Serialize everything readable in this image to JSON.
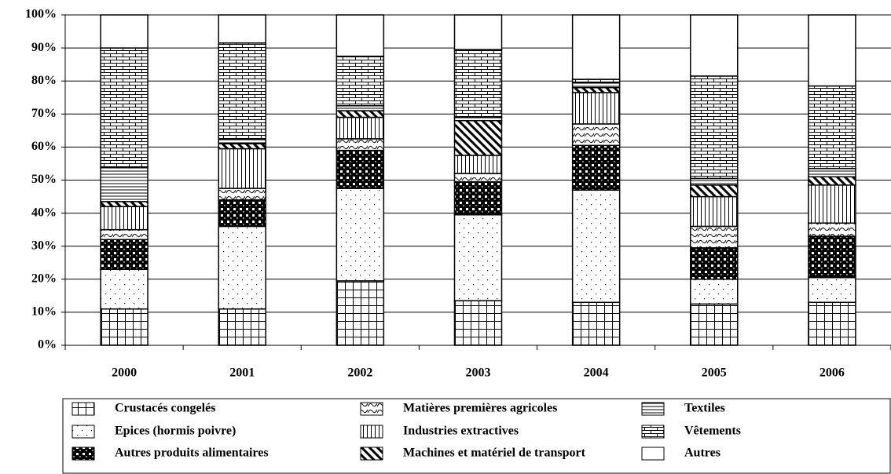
{
  "chart_data": {
    "type": "stacked-bar",
    "categories": [
      "2000",
      "2001",
      "2002",
      "2003",
      "2004",
      "2005",
      "2006"
    ],
    "ylim": [
      0,
      100
    ],
    "yticks": [
      {
        "value": 0,
        "label": "0%"
      },
      {
        "value": 10,
        "label": "10%"
      },
      {
        "value": 20,
        "label": "20%"
      },
      {
        "value": 30,
        "label": "30%"
      },
      {
        "value": 40,
        "label": "40%"
      },
      {
        "value": 50,
        "label": "50%"
      },
      {
        "value": 60,
        "label": "60%"
      },
      {
        "value": 70,
        "label": "70%"
      },
      {
        "value": 80,
        "label": "80%"
      },
      {
        "value": 90,
        "label": "90%"
      },
      {
        "value": 100,
        "label": "100%"
      }
    ],
    "grid": true,
    "legend": "bottom",
    "series": [
      {
        "name": "Crustacés congelés",
        "pattern": "grid",
        "values": [
          11,
          11,
          19.5,
          13.5,
          13,
          12.5,
          13
        ]
      },
      {
        "name": "Epices (hormis poivre)",
        "pattern": "dots",
        "values": [
          12,
          25,
          28,
          26,
          34,
          7.5,
          7.5
        ]
      },
      {
        "name": "Autres produits alimentaires",
        "pattern": "checker",
        "values": [
          9,
          8,
          11.5,
          10,
          13.5,
          9.5,
          12.5
        ]
      },
      {
        "name": "Matières premières agricoles",
        "pattern": "waves",
        "values": [
          3,
          3.5,
          3.5,
          2.5,
          6.5,
          6.5,
          4
        ]
      },
      {
        "name": "Industries extractives",
        "pattern": "vertical",
        "values": [
          7,
          12,
          6.5,
          5.5,
          9.5,
          9,
          11.5
        ]
      },
      {
        "name": "Machines et matériel de transport",
        "pattern": "diagonal",
        "values": [
          1.5,
          1.5,
          2,
          10.5,
          1.5,
          3.5,
          2.5
        ]
      },
      {
        "name": "Textiles",
        "pattern": "horizontal",
        "values": [
          10.5,
          1.5,
          1.5,
          1,
          1.5,
          2,
          2.5
        ]
      },
      {
        "name": "Vêtements",
        "pattern": "brick",
        "values": [
          36,
          29,
          15,
          20.5,
          1,
          31,
          25
        ]
      },
      {
        "name": "Autres",
        "pattern": "none",
        "values": [
          10,
          8.5,
          12.5,
          10.5,
          19.5,
          18.5,
          21.5
        ]
      }
    ]
  }
}
